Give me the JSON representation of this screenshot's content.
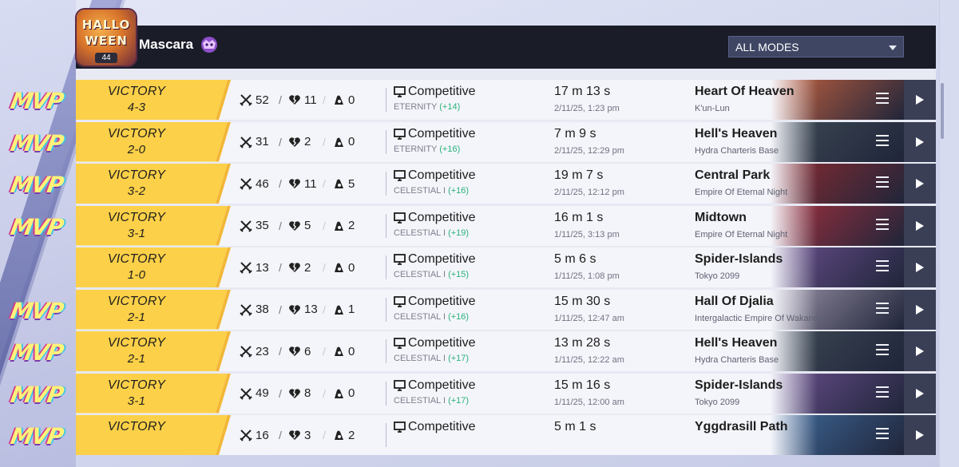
{
  "header": {
    "player_name": "Mascara",
    "badge_text_line1": "HALLO",
    "badge_text_line2": "WEEN",
    "badge_level": "44",
    "mode_filter": {
      "selected": "ALL MODES"
    }
  },
  "matches": [
    {
      "mvp": true,
      "result": "VICTORY",
      "score": "4-3",
      "kills": "52",
      "deaths": "11",
      "assists": "0",
      "mode": "Competitive",
      "rank": "ETERNITY",
      "rank_delta": "(+14)",
      "duration": "17 m 13 s",
      "date": "2/11/25, 1:23 pm",
      "map": "Heart Of Heaven",
      "region": "K'un-Lun",
      "map_color": "#c6623f"
    },
    {
      "mvp": true,
      "result": "VICTORY",
      "score": "2-0",
      "kills": "31",
      "deaths": "2",
      "assists": "0",
      "mode": "Competitive",
      "rank": "ETERNITY",
      "rank_delta": "(+16)",
      "duration": "7 m 9 s",
      "date": "2/11/25, 12:29 pm",
      "map": "Hell's Heaven",
      "region": "Hydra Charteris Base",
      "map_color": "#3e4a55"
    },
    {
      "mvp": true,
      "result": "VICTORY",
      "score": "3-2",
      "kills": "46",
      "deaths": "11",
      "assists": "5",
      "mode": "Competitive",
      "rank": "CELESTIAL I",
      "rank_delta": "(+16)",
      "duration": "19 m 7 s",
      "date": "2/11/25, 12:12 pm",
      "map": "Central Park",
      "region": "Empire Of Eternal Night",
      "map_color": "#8c2b30"
    },
    {
      "mvp": true,
      "result": "VICTORY",
      "score": "3-1",
      "kills": "35",
      "deaths": "5",
      "assists": "2",
      "mode": "Competitive",
      "rank": "CELESTIAL I",
      "rank_delta": "(+19)",
      "duration": "16 m 1 s",
      "date": "1/11/25, 3:13 pm",
      "map": "Midtown",
      "region": "Empire Of Eternal Night",
      "map_color": "#a3303d"
    },
    {
      "mvp": false,
      "result": "VICTORY",
      "score": "1-0",
      "kills": "13",
      "deaths": "2",
      "assists": "0",
      "mode": "Competitive",
      "rank": "CELESTIAL I",
      "rank_delta": "(+15)",
      "duration": "5 m 6 s",
      "date": "1/11/25, 1:08 pm",
      "map": "Spider-Islands",
      "region": "Tokyo 2099",
      "map_color": "#6a4f8e"
    },
    {
      "mvp": true,
      "result": "VICTORY",
      "score": "2-1",
      "kills": "38",
      "deaths": "13",
      "assists": "1",
      "mode": "Competitive",
      "rank": "CELESTIAL I",
      "rank_delta": "(+16)",
      "duration": "15 m 30 s",
      "date": "1/11/25, 12:47 am",
      "map": "Hall Of Djalia",
      "region": "Intergalactic Empire Of Wakanda",
      "map_color": "#9b93a8"
    },
    {
      "mvp": true,
      "result": "VICTORY",
      "score": "2-1",
      "kills": "23",
      "deaths": "6",
      "assists": "0",
      "mode": "Competitive",
      "rank": "CELESTIAL I",
      "rank_delta": "(+17)",
      "duration": "13 m 28 s",
      "date": "1/11/25, 12:22 am",
      "map": "Hell's Heaven",
      "region": "Hydra Charteris Base",
      "map_color": "#3e4a55"
    },
    {
      "mvp": true,
      "result": "VICTORY",
      "score": "3-1",
      "kills": "49",
      "deaths": "8",
      "assists": "0",
      "mode": "Competitive",
      "rank": "CELESTIAL I",
      "rank_delta": "(+17)",
      "duration": "15 m 16 s",
      "date": "1/11/25, 12:00 am",
      "map": "Spider-Islands",
      "region": "Tokyo 2099",
      "map_color": "#6a4f8e"
    },
    {
      "mvp": true,
      "result": "VICTORY",
      "score": "",
      "kills": "16",
      "deaths": "3",
      "assists": "2",
      "mode": "Competitive",
      "rank": "",
      "rank_delta": "",
      "duration": "5 m 1 s",
      "date": "",
      "map": "Yggdrasill Path",
      "region": "",
      "map_color": "#3f6a9b"
    }
  ],
  "colors": {
    "victory_yellow": "#fcd048",
    "rank_delta_green": "#28b27a",
    "header_dark": "#1a1d28"
  },
  "icons": {
    "kills": "crossed-swords-icon",
    "deaths": "broken-heart-icon",
    "assists": "assist-hand-icon",
    "mode": "monitor-icon",
    "menu": "hamburger-icon",
    "play": "play-icon"
  }
}
